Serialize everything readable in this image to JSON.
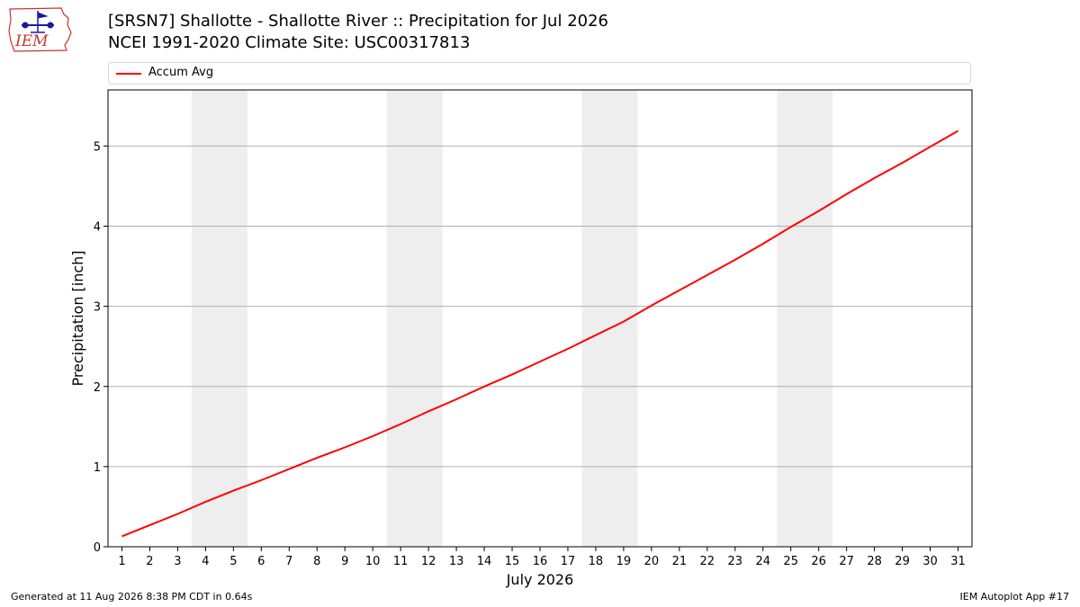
{
  "header": {
    "logo_text": "IEM",
    "title_line1": "[SRSN7] Shallotte - Shallotte River :: Precipitation for Jul 2026",
    "title_line2": "NCEI 1991-2020 Climate Site: USC00317813"
  },
  "colors": {
    "series_line": "#ff0000",
    "weekend_band": "#eeeeee",
    "grid": "#b0b0b0",
    "logo_red": "#cc3333",
    "logo_blue": "#1a1aa0"
  },
  "chart_data": {
    "type": "line",
    "title": "[SRSN7] Shallotte - Shallotte River :: Precipitation for Jul 2026",
    "subtitle": "NCEI 1991-2020 Climate Site: USC00317813",
    "xlabel": "July 2026",
    "ylabel": "Precipitation [inch]",
    "x": [
      1,
      2,
      3,
      4,
      5,
      6,
      7,
      8,
      9,
      10,
      11,
      12,
      13,
      14,
      15,
      16,
      17,
      18,
      19,
      20,
      21,
      22,
      23,
      24,
      25,
      26,
      27,
      28,
      29,
      30,
      31
    ],
    "x_tick_labels": [
      "1",
      "2",
      "3",
      "4",
      "5",
      "6",
      "7",
      "8",
      "9",
      "10",
      "11",
      "12",
      "13",
      "14",
      "15",
      "16",
      "17",
      "18",
      "19",
      "20",
      "21",
      "22",
      "23",
      "24",
      "25",
      "26",
      "27",
      "28",
      "29",
      "30",
      "31"
    ],
    "xlim": [
      0.5,
      31.5
    ],
    "ylim": [
      0,
      5.7
    ],
    "y_ticks": [
      0,
      1,
      2,
      3,
      4,
      5
    ],
    "grid": "y-major",
    "legend_position": "top",
    "shaded_weekends": [
      [
        4,
        5
      ],
      [
        11,
        12
      ],
      [
        18,
        19
      ],
      [
        25,
        26
      ]
    ],
    "series": [
      {
        "name": "Accum Avg",
        "values": [
          0.13,
          0.27,
          0.41,
          0.56,
          0.7,
          0.83,
          0.97,
          1.11,
          1.24,
          1.38,
          1.53,
          1.69,
          1.84,
          2.0,
          2.15,
          2.31,
          2.47,
          2.64,
          2.81,
          3.01,
          3.2,
          3.39,
          3.58,
          3.78,
          3.99,
          4.19,
          4.4,
          4.6,
          4.79,
          4.99,
          5.19
        ]
      }
    ]
  },
  "footer": {
    "left": "Generated at 11 Aug 2026 8:38 PM CDT in 0.64s",
    "right": "IEM Autoplot App #17"
  }
}
